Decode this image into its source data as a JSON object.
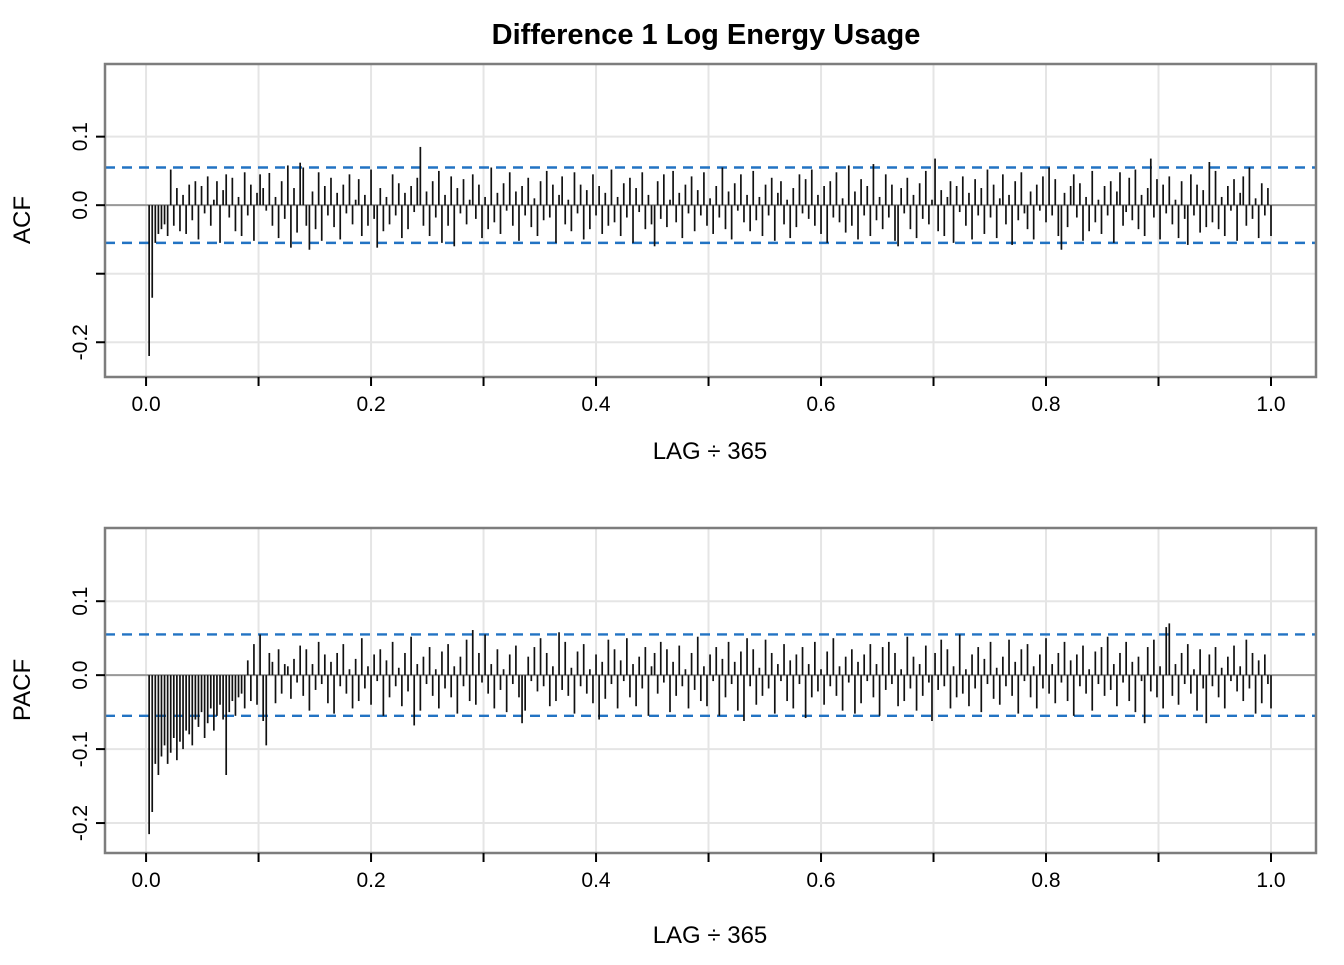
{
  "title": "Difference 1 Log Energy Usage",
  "chart_data": [
    {
      "type": "bar",
      "name": "ACF",
      "ylabel": "ACF",
      "xlabel": "LAG ÷ 365",
      "n_lags": 365,
      "xlim": [
        -0.0365,
        1.04
      ],
      "ylim": [
        -0.2507,
        0.206
      ],
      "xticks": {
        "values": [
          0,
          0.1,
          0.2,
          0.3,
          0.4,
          0.5,
          0.6,
          0.7,
          0.8,
          0.9,
          1.0
        ],
        "labels": [
          "0.0",
          "",
          "0.2",
          "",
          "0.4",
          "",
          "0.6",
          "",
          "0.8",
          "",
          "1.0"
        ]
      },
      "yticks": {
        "values": [
          0.1,
          0.0,
          -0.1,
          -0.2
        ],
        "labels": [
          "0.1",
          "0.0",
          "",
          "-0.2"
        ]
      },
      "confidence_band": 0.055,
      "grid": true,
      "colors": {
        "bar": "#111111",
        "confidence": "#2273c3",
        "grid": "#e5e5e5",
        "zero_line": "#999999",
        "border": "#7d7d7d"
      },
      "values": [
        -0.22,
        -0.135,
        -0.055,
        -0.042,
        -0.035,
        -0.028,
        -0.045,
        0.052,
        -0.03,
        0.025,
        -0.038,
        0.015,
        -0.042,
        0.03,
        -0.022,
        0.035,
        -0.05,
        0.028,
        -0.012,
        0.042,
        -0.03,
        0.008,
        0.035,
        -0.055,
        0.022,
        0.045,
        -0.018,
        0.04,
        -0.038,
        0.012,
        -0.045,
        0.048,
        -0.015,
        0.03,
        -0.052,
        0.018,
        0.045,
        0.025,
        -0.008,
        0.047,
        -0.03,
        0.012,
        -0.048,
        0.035,
        -0.02,
        0.058,
        -0.062,
        0.025,
        -0.04,
        0.062,
        0.055,
        -0.03,
        -0.065,
        0.02,
        -0.035,
        0.048,
        -0.052,
        0.028,
        -0.015,
        0.04,
        -0.032,
        0.018,
        -0.05,
        0.03,
        -0.012,
        0.045,
        -0.028,
        0.008,
        0.038,
        -0.045,
        0.015,
        -0.03,
        0.052,
        -0.02,
        -0.062,
        0.025,
        -0.038,
        0.012,
        -0.028,
        0.045,
        -0.015,
        0.032,
        -0.048,
        0.018,
        -0.035,
        0.028,
        -0.01,
        0.04,
        0.085,
        -0.03,
        0.02,
        -0.045,
        0.035,
        -0.018,
        0.05,
        -0.055,
        0.015,
        -0.03,
        0.042,
        -0.06,
        0.025,
        -0.012,
        0.038,
        -0.028,
        0.008,
        0.045,
        -0.02,
        0.03,
        -0.048,
        0.012,
        -0.035,
        0.055,
        -0.025,
        0.018,
        -0.042,
        0.032,
        -0.008,
        0.048,
        -0.03,
        0.02,
        -0.052,
        0.028,
        -0.015,
        0.04,
        -0.032,
        0.01,
        -0.045,
        0.035,
        -0.022,
        0.05,
        -0.018,
        0.03,
        -0.055,
        0.015,
        0.042,
        -0.028,
        0.008,
        -0.038,
        0.048,
        -0.012,
        0.03,
        -0.05,
        0.022,
        -0.035,
        0.045,
        -0.015,
        0.028,
        -0.042,
        0.018,
        -0.03,
        0.052,
        -0.025,
        0.012,
        -0.045,
        0.032,
        -0.018,
        0.04,
        -0.055,
        0.025,
        -0.01,
        0.048,
        -0.035,
        0.015,
        -0.028,
        -0.06,
        0.035,
        -0.02,
        0.045,
        -0.032,
        0.008,
        0.05,
        -0.025,
        0.018,
        -0.048,
        0.03,
        -0.012,
        0.042,
        -0.038,
        0.022,
        -0.015,
        0.048,
        -0.03,
        0.01,
        -0.042,
        0.028,
        -0.018,
        0.055,
        -0.035,
        0.02,
        -0.05,
        0.032,
        -0.008,
        0.045,
        -0.025,
        0.015,
        -0.038,
        0.05,
        -0.022,
        0.012,
        -0.045,
        0.03,
        -0.015,
        0.04,
        -0.052,
        0.018,
        0.035,
        -0.028,
        0.008,
        -0.048,
        0.025,
        -0.032,
        0.045,
        -0.012,
        0.038,
        -0.02,
        0.052,
        -0.03,
        0.015,
        -0.042,
        0.028,
        -0.055,
        0.035,
        -0.018,
        0.048,
        -0.025,
        0.01,
        -0.04,
        0.058,
        -0.03,
        0.02,
        -0.05,
        0.038,
        -0.015,
        0.028,
        -0.045,
        0.06,
        -0.022,
        0.012,
        -0.035,
        0.045,
        -0.018,
        0.03,
        -0.052,
        -0.06,
        0.025,
        -0.012,
        0.04,
        -0.035,
        0.015,
        -0.048,
        0.032,
        -0.02,
        0.05,
        -0.028,
        0.008,
        0.068,
        -0.038,
        0.022,
        -0.045,
        0.012,
        0.035,
        -0.055,
        0.028,
        -0.01,
        0.042,
        -0.03,
        0.018,
        -0.05,
        0.038,
        -0.015,
        0.025,
        -0.042,
        0.052,
        -0.018,
        0.03,
        -0.048,
        0.01,
        0.045,
        -0.028,
        0.015,
        -0.058,
        0.035,
        -0.022,
        0.048,
        -0.012,
        -0.035,
        0.02,
        -0.05,
        0.03,
        -0.008,
        0.042,
        -0.025,
        0.055,
        -0.015,
        0.038,
        -0.045,
        -0.065,
        0.018,
        -0.032,
        0.028,
        0.045,
        -0.018,
        0.032,
        -0.052,
        0.012,
        -0.038,
        0.05,
        -0.025,
        0.008,
        -0.042,
        0.028,
        -0.015,
        0.035,
        -0.055,
        0.02,
        0.048,
        -0.03,
        -0.01,
        0.04,
        -0.022,
        0.052,
        -0.035,
        0.015,
        -0.045,
        0.025,
        0.068,
        -0.018,
        0.038,
        -0.05,
        0.03,
        -0.012,
        0.042,
        -0.028,
        0.008,
        -0.048,
        0.035,
        -0.02,
        -0.058,
        0.045,
        -0.015,
        0.03,
        -0.04,
        0.022,
        -0.032,
        0.063,
        -0.025,
        0.05,
        -0.035,
        0.012,
        -0.045,
        0.028,
        -0.008,
        0.038,
        -0.052,
        0.018,
        0.042,
        -0.03,
        0.055,
        -0.02,
        0.01,
        -0.048,
        0.032,
        -0.015,
        0.025,
        -0.045
      ]
    },
    {
      "type": "bar",
      "name": "PACF",
      "ylabel": "PACF",
      "xlabel": "LAG ÷ 365",
      "n_lags": 365,
      "xlim": [
        -0.0365,
        1.04
      ],
      "ylim": [
        -0.2405,
        0.199
      ],
      "xticks": {
        "values": [
          0,
          0.1,
          0.2,
          0.3,
          0.4,
          0.5,
          0.6,
          0.7,
          0.8,
          0.9,
          1.0
        ],
        "labels": [
          "0.0",
          "",
          "0.2",
          "",
          "0.4",
          "",
          "0.6",
          "",
          "0.8",
          "",
          "1.0"
        ]
      },
      "yticks": {
        "values": [
          0.1,
          0.0,
          -0.1,
          -0.2
        ],
        "labels": [
          "0.1",
          "0.0",
          "-0.1",
          "-0.2"
        ]
      },
      "confidence_band": 0.055,
      "grid": true,
      "colors": {
        "bar": "#111111",
        "confidence": "#2273c3",
        "grid": "#e5e5e5",
        "zero_line": "#999999",
        "border": "#7d7d7d"
      },
      "values": [
        -0.215,
        -0.185,
        -0.12,
        -0.135,
        -0.11,
        -0.095,
        -0.12,
        -0.105,
        -0.085,
        -0.115,
        -0.09,
        -0.1,
        -0.075,
        -0.08,
        -0.095,
        -0.06,
        -0.07,
        -0.05,
        -0.085,
        -0.065,
        -0.045,
        -0.075,
        -0.055,
        -0.04,
        -0.06,
        -0.135,
        -0.05,
        -0.035,
        -0.055,
        -0.03,
        -0.025,
        -0.045,
        0.02,
        -0.035,
        0.042,
        -0.04,
        0.055,
        -0.062,
        -0.095,
        0.03,
        0.018,
        -0.038,
        0.035,
        -0.025,
        0.015,
        0.012,
        -0.032,
        0.022,
        -0.01,
        0.04,
        -0.028,
        0.035,
        -0.048,
        0.015,
        -0.02,
        0.045,
        -0.012,
        0.028,
        -0.038,
        0.018,
        -0.052,
        0.03,
        -0.015,
        0.042,
        -0.025,
        0.008,
        -0.045,
        0.022,
        -0.035,
        0.05,
        -0.018,
        0.012,
        -0.04,
        0.028,
        -0.008,
        0.035,
        -0.055,
        0.02,
        -0.03,
        0.045,
        -0.015,
        0.01,
        -0.042,
        0.03,
        -0.022,
        0.052,
        -0.068,
        0.015,
        -0.048,
        0.025,
        -0.012,
        0.038,
        -0.028,
        0.008,
        -0.045,
        0.032,
        -0.018,
        0.042,
        -0.03,
        0.012,
        -0.052,
        0.025,
        -0.015,
        0.048,
        -0.035,
        0.061,
        -0.04,
        0.03,
        -0.01,
        0.055,
        -0.025,
        0.015,
        -0.045,
        0.035,
        -0.02,
        0.008,
        -0.05,
        0.028,
        -0.012,
        0.04,
        -0.03,
        -0.065,
        -0.048,
        0.025,
        -0.008,
        0.038,
        -0.022,
        0.05,
        -0.015,
        0.03,
        -0.042,
        0.012,
        -0.035,
        0.058,
        -0.02,
        0.045,
        -0.028,
        0.01,
        -0.052,
        0.032,
        -0.015,
        0.042,
        -0.025,
        0.008,
        -0.038,
        0.028,
        -0.06,
        0.018,
        -0.032,
        0.048,
        -0.012,
        0.035,
        -0.045,
        0.02,
        -0.008,
        0.05,
        -0.03,
        0.015,
        -0.042,
        0.025,
        -0.018,
        0.038,
        -0.055,
        0.012,
        0.03,
        -0.025,
        0.045,
        -0.01,
        0.035,
        -0.05,
        0.018,
        -0.028,
        0.04,
        -0.015,
        0.008,
        -0.045,
        0.03,
        -0.02,
        0.052,
        -0.035,
        0.012,
        -0.042,
        0.028,
        -0.008,
        0.038,
        -0.055,
        0.022,
        -0.03,
        0.045,
        -0.012,
        0.018,
        -0.048,
        0.032,
        -0.062,
        0.05,
        -0.015,
        0.035,
        -0.04,
        0.01,
        -0.028,
        0.048,
        -0.018,
        0.03,
        -0.052,
        0.015,
        -0.008,
        0.042,
        -0.035,
        0.02,
        -0.045,
        0.028,
        -0.012,
        0.038,
        -0.058,
        0.015,
        -0.03,
        0.045,
        -0.022,
        0.008,
        -0.04,
        0.032,
        -0.015,
        0.05,
        -0.028,
        0.012,
        -0.048,
        0.025,
        -0.01,
        0.035,
        -0.052,
        0.018,
        -0.038,
        0.028,
        -0.008,
        0.042,
        -0.03,
        0.015,
        -0.055,
        0.038,
        -0.02,
        0.045,
        -0.012,
        0.03,
        -0.042,
        0.008,
        -0.035,
        0.052,
        -0.018,
        0.025,
        -0.048,
        0.015,
        -0.028,
        0.04,
        -0.01,
        -0.062,
        0.03,
        -0.02,
        0.048,
        -0.015,
        0.035,
        -0.045,
        0.012,
        -0.03,
        0.055,
        -0.025,
        0.008,
        -0.042,
        0.028,
        -0.018,
        0.038,
        -0.05,
        0.022,
        -0.012,
        0.045,
        -0.032,
        0.01,
        -0.04,
        0.025,
        -0.015,
        0.048,
        -0.028,
        0.018,
        -0.052,
        0.035,
        -0.008,
        0.042,
        -0.03,
        0.012,
        -0.045,
        0.028,
        -0.018,
        0.05,
        -0.025,
        0.015,
        -0.038,
        0.03,
        -0.01,
        0.045,
        -0.035,
        0.02,
        -0.055,
        0.028,
        -0.015,
        0.04,
        -0.025,
        0.008,
        -0.048,
        0.032,
        -0.012,
        0.038,
        -0.028,
        0.052,
        -0.02,
        0.015,
        -0.042,
        0.03,
        -0.01,
        0.045,
        -0.035,
        0.018,
        -0.05,
        0.025,
        -0.008,
        -0.065,
        0.038,
        -0.022,
        0.048,
        -0.03,
        0.012,
        -0.045,
        0.065,
        0.07,
        -0.028,
        0.015,
        -0.04,
        0.03,
        -0.012,
        0.042,
        -0.025,
        0.008,
        -0.048,
        0.035,
        -0.018,
        -0.065,
        0.028,
        -0.015,
        0.038,
        -0.03,
        0.01,
        -0.045,
        0.025,
        -0.008,
        0.04,
        -0.022,
        0.012,
        -0.035,
        0.048,
        -0.018,
        0.03,
        -0.052,
        0.02,
        -0.038,
        0.028,
        -0.012,
        -0.045
      ]
    }
  ]
}
